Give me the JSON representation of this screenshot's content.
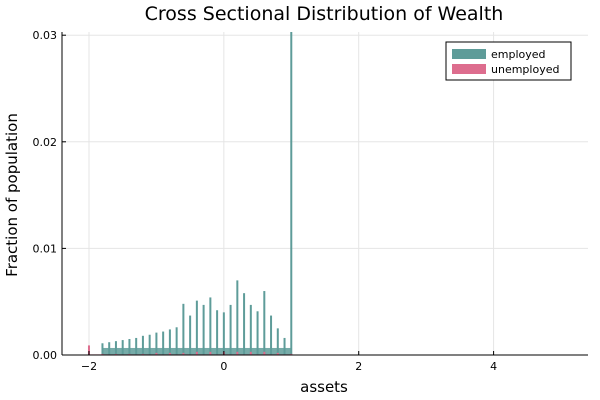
{
  "chart_data": {
    "type": "bar",
    "title": "Cross Sectional Distribution of Wealth",
    "xlabel": "assets",
    "ylabel": "Fraction of population",
    "xlim": [
      -2.4,
      5.4
    ],
    "ylim": [
      0,
      0.0303
    ],
    "x_ticks": [
      -2,
      0,
      2,
      4
    ],
    "x_tick_labels": [
      "−2",
      "0",
      "2",
      "4"
    ],
    "y_ticks": [
      0,
      0.01,
      0.02,
      0.03
    ],
    "y_tick_labels": [
      "0.00",
      "0.01",
      "0.02",
      "0.03"
    ],
    "grid": true,
    "legend_position": "top-right",
    "series": [
      {
        "name": "employed",
        "color": "#5e9c99",
        "x": [
          -1.8,
          -1.7,
          -1.6,
          -1.5,
          -1.4,
          -1.3,
          -1.2,
          -1.1,
          -1.0,
          -0.9,
          -0.8,
          -0.7,
          -0.6,
          -0.5,
          -0.4,
          -0.3,
          -0.2,
          -0.1,
          0.0,
          0.1,
          0.2,
          0.3,
          0.4,
          0.5,
          0.6,
          0.7,
          0.8,
          0.9,
          1.0,
          1.5,
          2.0,
          2.5,
          3.0,
          3.5,
          4.0,
          4.5,
          5.0
        ],
        "values": [
          0.0011,
          0.0012,
          0.0013,
          0.0014,
          0.0015,
          0.0016,
          0.0018,
          0.0019,
          0.0021,
          0.0022,
          0.0024,
          0.0026,
          0.0048,
          0.0037,
          0.0051,
          0.0047,
          0.0054,
          0.0042,
          0.004,
          0.0047,
          0.007,
          0.0058,
          0.0047,
          0.0041,
          0.006,
          0.0037,
          0.0025,
          0.0016,
          0.0303,
          0.0,
          0.0,
          0.0,
          0.0,
          0.0,
          0.0,
          0.0,
          0.0
        ]
      },
      {
        "name": "unemployed",
        "color": "#dd6d8e",
        "x": [
          -2.0,
          -1.8,
          -1.6,
          -1.4,
          -1.2,
          -1.0,
          -0.8,
          -0.6,
          -0.4,
          -0.2,
          0.0,
          0.2,
          0.4,
          0.6,
          0.8,
          1.0
        ],
        "values": [
          0.0009,
          0.0001,
          0.0001,
          0.0001,
          0.0001,
          0.0002,
          0.0002,
          0.0002,
          0.0003,
          0.0003,
          0.0003,
          0.0003,
          0.0003,
          0.0003,
          0.0002,
          0.0001
        ]
      }
    ]
  }
}
